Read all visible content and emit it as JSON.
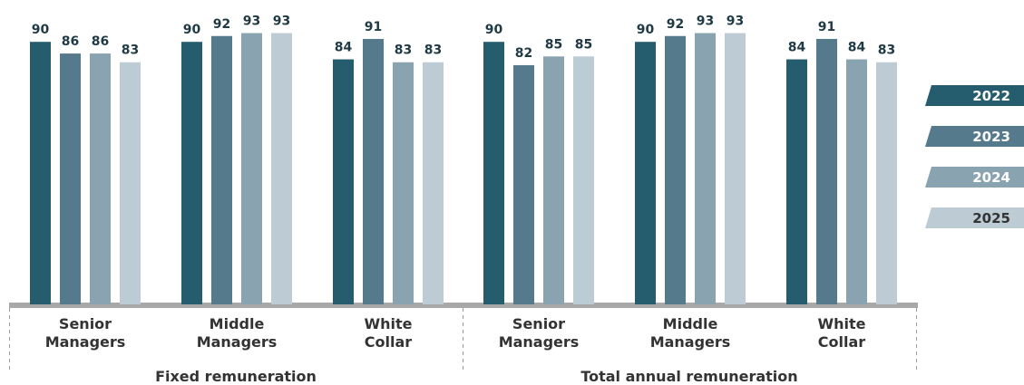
{
  "chart_data": {
    "type": "bar",
    "groups": [
      {
        "label": "Fixed remuneration",
        "categories": [
          "Senior Managers",
          "Middle Managers",
          "White Collar"
        ]
      },
      {
        "label": "Total annual remuneration",
        "categories": [
          "Senior Managers",
          "Middle Managers",
          "White Collar"
        ]
      }
    ],
    "series": [
      {
        "name": "2022",
        "color": "#255c6e",
        "values": [
          90,
          90,
          84,
          90,
          90,
          84
        ]
      },
      {
        "name": "2023",
        "color": "#557a8c",
        "values": [
          86,
          92,
          91,
          82,
          92,
          91
        ]
      },
      {
        "name": "2024",
        "color": "#8aa3b0",
        "values": [
          86,
          93,
          83,
          85,
          93,
          84
        ]
      },
      {
        "name": "2025",
        "color": "#bccbd4",
        "values": [
          83,
          93,
          83,
          85,
          93,
          83
        ]
      }
    ],
    "ylim": [
      0,
      100
    ],
    "legend": "right"
  }
}
